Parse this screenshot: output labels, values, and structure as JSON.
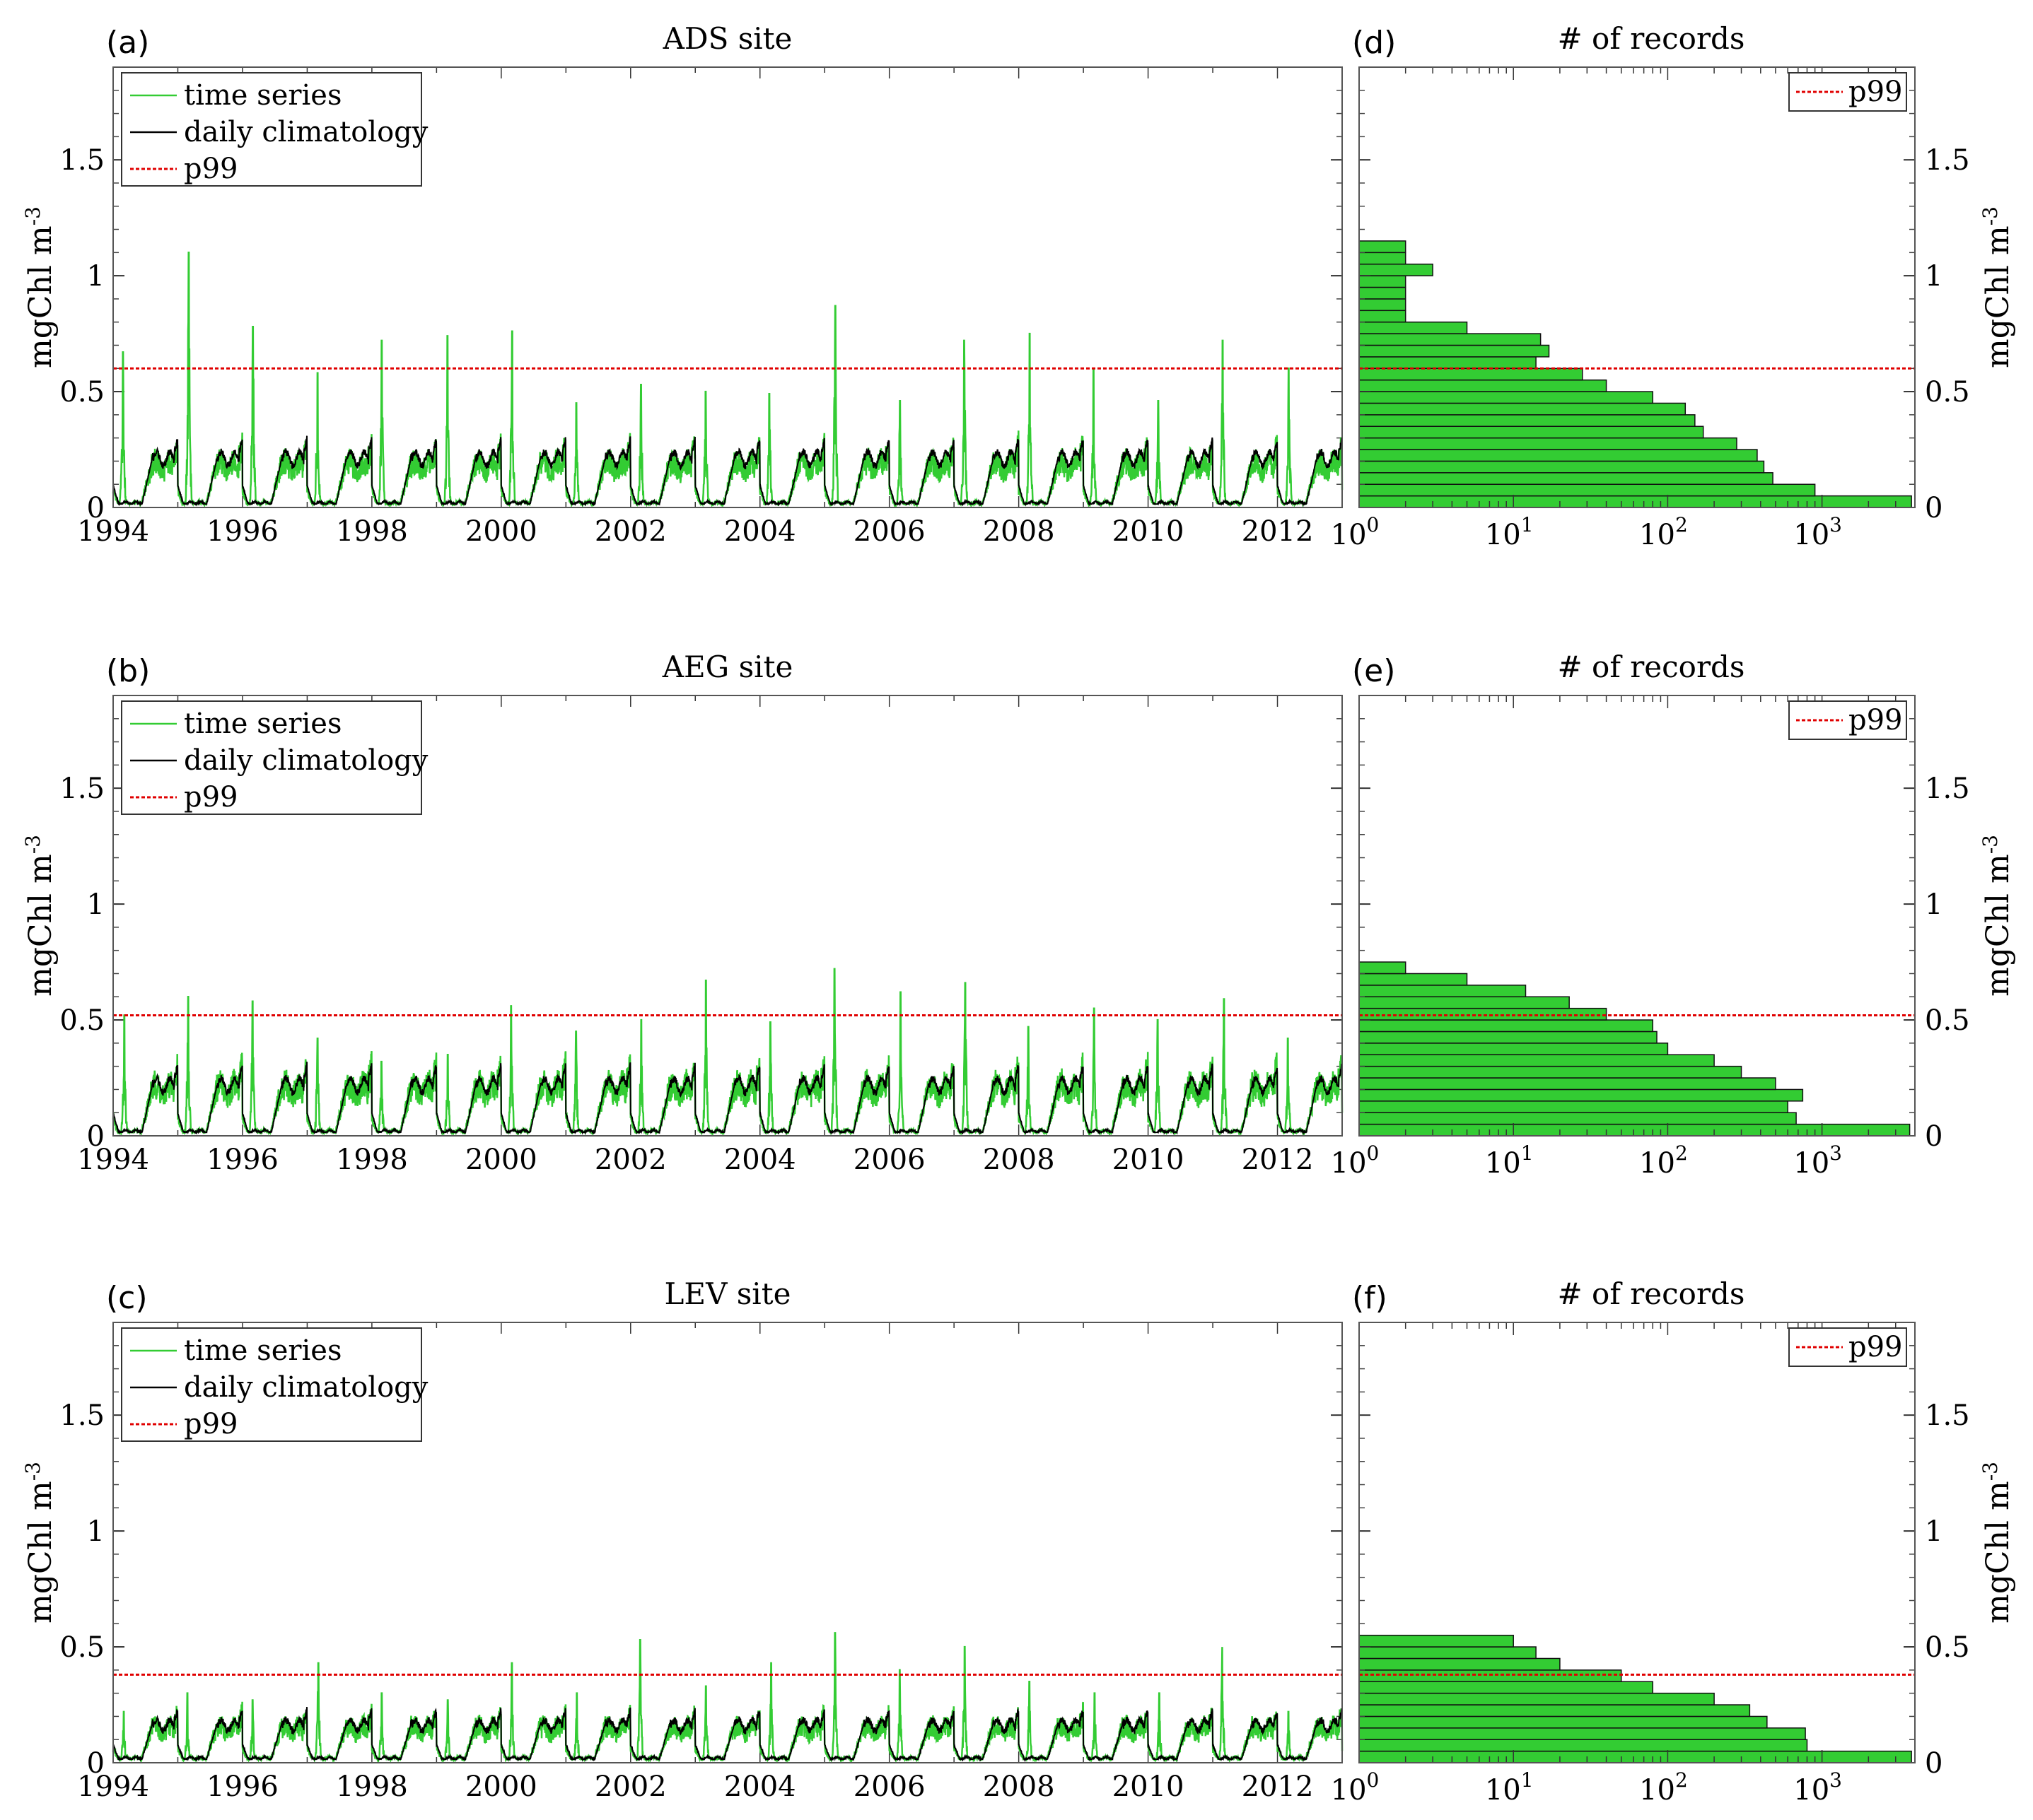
{
  "chart_data": [
    {
      "panel_label": "(a)",
      "type": "line",
      "title": "ADS site",
      "ylabel": "mgChl m",
      "ylabel_sup": "-3",
      "xlim": [
        1994,
        2013
      ],
      "ylim": [
        0,
        1.9
      ],
      "xticks": [
        1994,
        1996,
        1998,
        2000,
        2002,
        2004,
        2006,
        2008,
        2010,
        2012
      ],
      "yticks": [
        0,
        0.5,
        1,
        1.5
      ],
      "ytick_labels": [
        "0",
        "0.5",
        "1",
        "1.5"
      ],
      "legend": {
        "position": "top-left",
        "entries": [
          "time series",
          "daily climatology",
          "p99"
        ]
      },
      "p99": 0.6,
      "series": [
        {
          "name": "time series",
          "color": "#33cc33",
          "peak_value": 0.25,
          "peaks": [
            0.67,
            1.1,
            0.78,
            0.58,
            0.72,
            0.74,
            0.76,
            0.45,
            0.53,
            0.5,
            0.49,
            0.87,
            0.46,
            0.72,
            0.75,
            0.6,
            0.46,
            0.72,
            0.6
          ]
        },
        {
          "name": "daily climatology",
          "color": "#000000",
          "peak_value": 0.3
        }
      ]
    },
    {
      "panel_label": "(b)",
      "type": "line",
      "title": "AEG site",
      "ylabel": "mgChl m",
      "ylabel_sup": "-3",
      "xlim": [
        1994,
        2013
      ],
      "ylim": [
        0,
        1.9
      ],
      "xticks": [
        1994,
        1996,
        1998,
        2000,
        2002,
        2004,
        2006,
        2008,
        2010,
        2012
      ],
      "yticks": [
        0,
        0.5,
        1,
        1.5
      ],
      "ytick_labels": [
        "0",
        "0.5",
        "1",
        "1.5"
      ],
      "legend": {
        "position": "top-left",
        "entries": [
          "time series",
          "daily climatology",
          "p99"
        ]
      },
      "p99": 0.52,
      "series": [
        {
          "name": "time series",
          "color": "#33cc33",
          "peak_value": 0.28,
          "peaks": [
            0.52,
            0.6,
            0.58,
            0.42,
            0.32,
            0.35,
            0.56,
            0.45,
            0.5,
            0.67,
            0.49,
            0.72,
            0.62,
            0.66,
            0.47,
            0.55,
            0.5,
            0.59,
            0.42
          ]
        },
        {
          "name": "daily climatology",
          "color": "#000000",
          "peak_value": 0.31
        }
      ]
    },
    {
      "panel_label": "(c)",
      "type": "line",
      "title": "LEV site",
      "ylabel": "mgChl m",
      "ylabel_sup": "-3",
      "xlim": [
        1994,
        2013
      ],
      "ylim": [
        0,
        1.9
      ],
      "xticks": [
        1994,
        1996,
        1998,
        2000,
        2002,
        2004,
        2006,
        2008,
        2010,
        2012
      ],
      "yticks": [
        0,
        0.5,
        1,
        1.5
      ],
      "ytick_labels": [
        "0",
        "0.5",
        "1",
        "1.5"
      ],
      "legend": {
        "position": "top-left",
        "entries": [
          "time series",
          "daily climatology",
          "p99"
        ]
      },
      "p99": 0.38,
      "series": [
        {
          "name": "time series",
          "color": "#33cc33",
          "peak_value": 0.2,
          "peaks": [
            0.22,
            0.3,
            0.27,
            0.43,
            0.3,
            0.27,
            0.43,
            0.3,
            0.53,
            0.33,
            0.43,
            0.56,
            0.4,
            0.5,
            0.35,
            0.3,
            0.3,
            0.5,
            0.22
          ]
        },
        {
          "name": "daily climatology",
          "color": "#000000",
          "peak_value": 0.23
        }
      ]
    },
    {
      "panel_label": "(d)",
      "type": "bar",
      "orientation": "horizontal",
      "title": "# of records",
      "ylabel": "mgChl m",
      "ylabel_sup": "-3",
      "xscale": "log",
      "xlim": [
        1,
        4000
      ],
      "ylim": [
        0,
        1.9
      ],
      "xticks": [
        1,
        10,
        100,
        1000
      ],
      "xtick_base": "10",
      "xtick_exponents": [
        "0",
        "1",
        "2",
        "3"
      ],
      "yticks": [
        0,
        0.5,
        1,
        1.5
      ],
      "ytick_labels": [
        "0",
        "0.5",
        "1",
        "1.5"
      ],
      "legend": {
        "position": "top-right",
        "entries": [
          "p99"
        ]
      },
      "p99": 0.6,
      "bar_color": "#33cc33",
      "bin_width": 0.05,
      "bin_starts": [
        0,
        0.05,
        0.1,
        0.15,
        0.2,
        0.25,
        0.3,
        0.35,
        0.4,
        0.45,
        0.5,
        0.55,
        0.6,
        0.65,
        0.7,
        0.75,
        0.8,
        0.85,
        0.9,
        0.95,
        1.0,
        1.05,
        1.1
      ],
      "counts": [
        3800,
        900,
        480,
        420,
        380,
        280,
        170,
        150,
        130,
        80,
        40,
        28,
        14,
        17,
        15,
        5,
        2,
        2,
        2,
        2,
        3,
        2,
        2
      ]
    },
    {
      "panel_label": "(e)",
      "type": "bar",
      "orientation": "horizontal",
      "title": "# of records",
      "ylabel": "mgChl m",
      "ylabel_sup": "-3",
      "xscale": "log",
      "xlim": [
        1,
        4000
      ],
      "ylim": [
        0,
        1.9
      ],
      "xticks": [
        1,
        10,
        100,
        1000
      ],
      "xtick_base": "10",
      "xtick_exponents": [
        "0",
        "1",
        "2",
        "3"
      ],
      "yticks": [
        0,
        0.5,
        1,
        1.5
      ],
      "ytick_labels": [
        "0",
        "0.5",
        "1",
        "1.5"
      ],
      "legend": {
        "position": "top-right",
        "entries": [
          "p99"
        ]
      },
      "p99": 0.52,
      "bar_color": "#33cc33",
      "bin_width": 0.05,
      "bin_starts": [
        0,
        0.05,
        0.1,
        0.15,
        0.2,
        0.25,
        0.3,
        0.35,
        0.4,
        0.45,
        0.5,
        0.55,
        0.6,
        0.65,
        0.7
      ],
      "counts": [
        3700,
        680,
        600,
        750,
        500,
        300,
        200,
        100,
        85,
        80,
        40,
        23,
        12,
        5,
        2
      ]
    },
    {
      "panel_label": "(f)",
      "type": "bar",
      "orientation": "horizontal",
      "title": "# of records",
      "ylabel": "mgChl m",
      "ylabel_sup": "-3",
      "xscale": "log",
      "xlim": [
        1,
        4000
      ],
      "ylim": [
        0,
        1.9
      ],
      "xticks": [
        1,
        10,
        100,
        1000
      ],
      "xtick_base": "10",
      "xtick_exponents": [
        "0",
        "1",
        "2",
        "3"
      ],
      "yticks": [
        0,
        0.5,
        1,
        1.5
      ],
      "ytick_labels": [
        "0",
        "0.5",
        "1",
        "1.5"
      ],
      "legend": {
        "position": "top-right",
        "entries": [
          "p99"
        ]
      },
      "p99": 0.38,
      "bar_color": "#33cc33",
      "bin_width": 0.05,
      "bin_starts": [
        0,
        0.05,
        0.1,
        0.15,
        0.2,
        0.25,
        0.3,
        0.35,
        0.4,
        0.45,
        0.5
      ],
      "counts": [
        3800,
        800,
        780,
        440,
        340,
        200,
        80,
        50,
        20,
        14,
        10
      ]
    }
  ]
}
